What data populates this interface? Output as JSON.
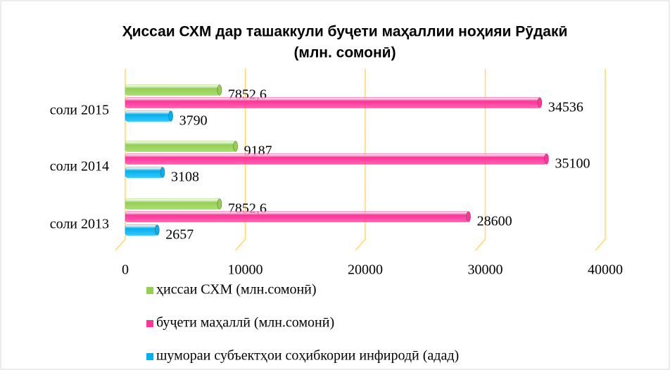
{
  "chart_data": {
    "type": "bar",
    "orientation": "horizontal",
    "title": [
      "Ҳиссаи СХМ дар ташаккули буҷети маҳаллии ноҳияи Рӯдакӣ",
      "(млн. сомонӣ)"
    ],
    "categories": [
      "соли 2013",
      "соли 2014",
      "соли 2015"
    ],
    "series": [
      {
        "name": "ҳиссаи СХМ (млн.сомонӣ)",
        "color": "#92d050",
        "values": [
          7852.6,
          9187,
          7852.6
        ],
        "value_labels": [
          "7852,6",
          "9187",
          "7852,6"
        ]
      },
      {
        "name": "буҷети маҳаллӣ (млн.сомонӣ)",
        "color": "#ff3399",
        "values": [
          28600,
          35100,
          34536
        ]
      },
      {
        "name": "шумораи субъектҳои соҳибкории инфиродӣ (адад)",
        "color": "#00b0f0",
        "values": [
          2657,
          3108,
          3790
        ]
      }
    ],
    "xlim": [
      0,
      40000
    ],
    "xticks": [
      0,
      10000,
      20000,
      30000,
      40000
    ],
    "grid": true,
    "grid_color": "#ffd966"
  }
}
